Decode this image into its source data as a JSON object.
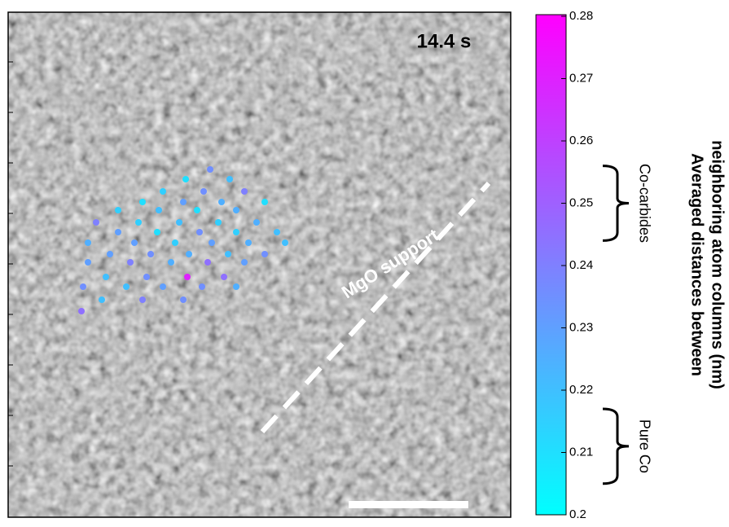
{
  "image": {
    "time_label": "14.4 s",
    "support_label": "MgO support",
    "points": {
      "values": [
        0.235,
        0.21,
        0.22,
        0.215,
        0.235,
        0.24,
        0.21,
        0.23,
        0.225,
        0.21,
        0.215,
        0.22,
        0.21,
        0.225,
        0.24,
        0.215,
        0.22,
        0.215,
        0.225,
        0.23,
        0.21,
        0.235,
        0.215,
        0.22,
        0.225,
        0.23,
        0.215,
        0.23,
        0.225,
        0.22,
        0.23,
        0.235,
        0.225,
        0.22,
        0.235,
        0.23,
        0.24,
        0.225,
        0.245,
        0.23,
        0.22,
        0.235,
        0.27,
        0.245,
        0.235,
        0.22,
        0.23,
        0.235,
        0.225,
        0.22,
        0.24,
        0.235,
        0.245
      ]
    }
  },
  "colorbar": {
    "lim": [
      0.2,
      0.28
    ],
    "ticks": [
      0.2,
      0.21,
      0.22,
      0.23,
      0.24,
      0.25,
      0.26,
      0.27,
      0.28
    ],
    "color_low": "#00ffff",
    "color_high": "#ff00ff",
    "label_lines": [
      "Averaged distances between",
      "neighboring atom columns (nm)"
    ],
    "brackets": [
      {
        "label": "Co-carbides",
        "range": [
          0.244,
          0.256
        ]
      },
      {
        "label": "Pure Co",
        "range": [
          0.205,
          0.217
        ]
      }
    ]
  }
}
